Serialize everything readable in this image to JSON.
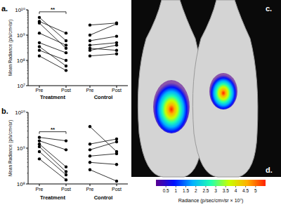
{
  "chart_data": [
    {
      "type": "line",
      "panel_label": "a.",
      "y_label": "Mean Radiance (p/s/cm²/sr)",
      "categories": [
        "Pre",
        "Post",
        "Pre",
        "Post"
      ],
      "groups": [
        {
          "label": "Treatment",
          "significance": "**",
          "pre": [
            5000000000,
            3500000000,
            3000000000,
            1200000000,
            500000000,
            350000000,
            250000000,
            150000000
          ],
          "post": [
            600000000,
            1200000000,
            300000000,
            400000000,
            200000000,
            60000000,
            100000000,
            40000000
          ]
        },
        {
          "label": "Control",
          "pre": [
            2500000000,
            1000000000,
            600000000,
            400000000,
            300000000,
            250000000,
            150000000
          ],
          "post": [
            3000000000,
            2800000000,
            900000000,
            500000000,
            250000000,
            400000000,
            180000000
          ]
        }
      ],
      "log": "y",
      "ylim": [
        10000000,
        10000000000
      ],
      "yticks": [
        {
          "value": 10000000,
          "label": "10⁷"
        },
        {
          "value": 100000000,
          "label": "10⁸"
        },
        {
          "value": 1000000000,
          "label": "10⁹"
        },
        {
          "value": 10000000000,
          "label": "10¹⁰"
        }
      ]
    },
    {
      "type": "line",
      "panel_label": "b.",
      "y_label": "Mean Radiance (p/s/cm²/sr)",
      "categories": [
        "Pre",
        "Post",
        "Pre",
        "Post"
      ],
      "groups": [
        {
          "label": "Treatment",
          "significance": "**",
          "pre": [
            2000000000,
            1600000000,
            1300000000,
            1100000000,
            800000000,
            500000000
          ],
          "post": [
            1600000000,
            900000000,
            300000000,
            220000000,
            180000000,
            130000000
          ]
        },
        {
          "label": "Control",
          "pre": [
            4000000000,
            1300000000,
            900000000,
            600000000,
            400000000,
            250000000
          ],
          "post": [
            800000000,
            1800000000,
            1500000000,
            700000000,
            350000000,
            120000000
          ]
        }
      ],
      "log": "y",
      "ylim": [
        100000000,
        10000000000
      ],
      "yticks": [
        {
          "value": 100000000,
          "label": "10⁸"
        },
        {
          "value": 1000000000,
          "label": "10⁹"
        },
        {
          "value": 10000000000,
          "label": "10¹⁰"
        }
      ]
    }
  ],
  "image_panel": {
    "labels": [
      "c.",
      "d."
    ],
    "colorbar": {
      "label": "Radiance (p/sec/cm²/sr × 10⁷)",
      "range": [
        0,
        5.5
      ],
      "ticks": [
        0.5,
        1,
        1.5,
        2,
        2.5,
        3,
        3.5,
        4,
        4.5,
        5
      ]
    }
  }
}
